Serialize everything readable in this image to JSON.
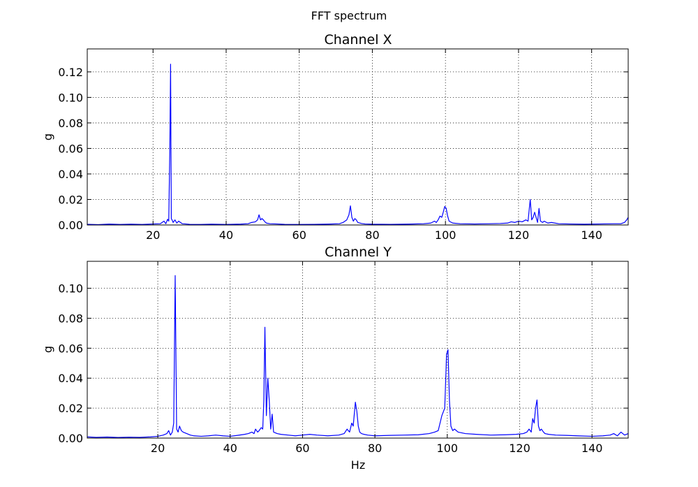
{
  "figure": {
    "suptitle": "FFT spectrum",
    "line_color": "#0000ff",
    "grid_color": "#000000",
    "axis_color": "#000000"
  },
  "chart_data": [
    {
      "type": "line",
      "title": "Channel X",
      "xlabel": "",
      "ylabel": "g",
      "xlim": [
        2,
        150
      ],
      "ylim": [
        0,
        0.138
      ],
      "xticks": [
        20,
        40,
        60,
        80,
        100,
        120,
        140
      ],
      "yticks": [
        0.0,
        0.02,
        0.04,
        0.06,
        0.08,
        0.1,
        0.12
      ],
      "xtick_labels": [
        "20",
        "40",
        "60",
        "80",
        "100",
        "120",
        "140"
      ],
      "ytick_labels": [
        "0.00",
        "0.02",
        "0.04",
        "0.06",
        "0.08",
        "0.10",
        "0.12"
      ],
      "grid": true,
      "series": [
        {
          "x": [
            2,
            5,
            8,
            11,
            14,
            17,
            20,
            22,
            23,
            23.5,
            24,
            24.3,
            24.6,
            24.8,
            25.0,
            25.2,
            25.5,
            26,
            26.5,
            27,
            27.5,
            28,
            29,
            30,
            33,
            36,
            40,
            44,
            46,
            47,
            48,
            48.6,
            49,
            49.4,
            49.8,
            50.2,
            50.6,
            51,
            52,
            54,
            56,
            60,
            64,
            68,
            71,
            72,
            73,
            73.6,
            74,
            74.4,
            74.8,
            75.2,
            75.6,
            76,
            77,
            78,
            80,
            85,
            90,
            94,
            96,
            97,
            97.5,
            98,
            98.5,
            99,
            99.4,
            99.8,
            100.2,
            100.6,
            101,
            102,
            104,
            108,
            112,
            115,
            117,
            118,
            119,
            120,
            121,
            122,
            122.6,
            123.2,
            123.6,
            124,
            124.4,
            124.8,
            125.2,
            125.6,
            126,
            126.6,
            127,
            128,
            129,
            131,
            134,
            138,
            142,
            146,
            148,
            149,
            149.6,
            150
          ],
          "y": [
            0.0005,
            0.0003,
            0.0007,
            0.0004,
            0.0006,
            0.0004,
            0.0008,
            0.001,
            0.003,
            0.001,
            0.0045,
            0.003,
            0.06,
            0.126,
            0.005,
            0.004,
            0.002,
            0.004,
            0.0015,
            0.003,
            0.002,
            0.001,
            0.0008,
            0.0005,
            0.0004,
            0.0006,
            0.0004,
            0.0007,
            0.001,
            0.002,
            0.0025,
            0.004,
            0.008,
            0.004,
            0.005,
            0.004,
            0.0025,
            0.0015,
            0.001,
            0.0008,
            0.0005,
            0.0004,
            0.0005,
            0.0007,
            0.001,
            0.002,
            0.004,
            0.008,
            0.015,
            0.006,
            0.003,
            0.005,
            0.004,
            0.002,
            0.0012,
            0.0008,
            0.0006,
            0.0005,
            0.0007,
            0.001,
            0.0015,
            0.003,
            0.002,
            0.004,
            0.007,
            0.006,
            0.01,
            0.0145,
            0.013,
            0.007,
            0.003,
            0.0015,
            0.001,
            0.0008,
            0.001,
            0.0012,
            0.0015,
            0.0025,
            0.002,
            0.003,
            0.0025,
            0.004,
            0.003,
            0.02,
            0.004,
            0.006,
            0.01,
            0.006,
            0.002,
            0.013,
            0.003,
            0.002,
            0.003,
            0.0015,
            0.002,
            0.001,
            0.0008,
            0.0006,
            0.0008,
            0.001,
            0.001,
            0.002,
            0.004,
            0.006
          ]
        }
      ]
    },
    {
      "type": "line",
      "title": "Channel Y",
      "xlabel": "Hz",
      "ylabel": "g",
      "xlim": [
        0.5,
        150
      ],
      "ylim": [
        0,
        0.118
      ],
      "xticks": [
        20,
        40,
        60,
        80,
        100,
        120,
        140
      ],
      "yticks": [
        0.0,
        0.02,
        0.04,
        0.06,
        0.08,
        0.1
      ],
      "xtick_labels": [
        "20",
        "40",
        "60",
        "80",
        "100",
        "120",
        "140"
      ],
      "ytick_labels": [
        "0.00",
        "0.02",
        "0.04",
        "0.06",
        "0.08",
        "0.10"
      ],
      "grid": true,
      "series": [
        {
          "x": [
            0.5,
            3,
            6,
            9,
            12,
            15,
            18,
            20,
            21.5,
            22.5,
            23,
            23.5,
            24,
            24.4,
            24.8,
            25.2,
            25.6,
            26,
            26.5,
            27,
            28,
            29,
            30,
            32,
            34,
            36,
            38,
            40,
            42,
            44,
            45,
            46,
            46.6,
            47,
            47.6,
            48,
            48.6,
            49,
            49.3,
            49.6,
            50.0,
            50.4,
            50.8,
            51.2,
            51.6,
            52,
            53,
            54,
            56,
            58,
            60,
            62,
            64,
            67,
            70,
            71.5,
            72.3,
            73,
            73.6,
            74,
            74.6,
            75.0,
            75.4,
            75.8,
            76.3,
            77,
            78,
            80,
            84,
            88,
            92,
            95,
            96.5,
            97.5,
            98.5,
            99.3,
            99.8,
            100.2,
            100.6,
            101.0,
            101.5,
            102,
            103,
            105,
            108,
            112,
            116,
            119,
            121,
            122,
            122.6,
            123.2,
            123.6,
            124,
            124.4,
            124.8,
            125.2,
            125.6,
            126,
            126.6,
            127,
            128,
            130,
            133,
            136,
            140,
            143,
            145,
            146,
            147,
            148,
            149,
            150
          ],
          "y": [
            0.0008,
            0.0005,
            0.0007,
            0.0004,
            0.0006,
            0.0005,
            0.0008,
            0.0012,
            0.002,
            0.003,
            0.005,
            0.002,
            0.004,
            0.01,
            0.1085,
            0.006,
            0.004,
            0.008,
            0.005,
            0.004,
            0.003,
            0.002,
            0.0015,
            0.0012,
            0.0015,
            0.002,
            0.0015,
            0.0012,
            0.0018,
            0.0025,
            0.003,
            0.004,
            0.003,
            0.006,
            0.004,
            0.005,
            0.007,
            0.006,
            0.025,
            0.074,
            0.015,
            0.04,
            0.025,
            0.006,
            0.016,
            0.004,
            0.003,
            0.0025,
            0.002,
            0.0015,
            0.002,
            0.0025,
            0.002,
            0.0015,
            0.002,
            0.003,
            0.006,
            0.004,
            0.01,
            0.008,
            0.024,
            0.018,
            0.008,
            0.004,
            0.003,
            0.0025,
            0.002,
            0.0015,
            0.0018,
            0.002,
            0.0022,
            0.003,
            0.004,
            0.005,
            0.015,
            0.02,
            0.056,
            0.059,
            0.025,
            0.008,
            0.005,
            0.006,
            0.004,
            0.003,
            0.0025,
            0.002,
            0.0022,
            0.0025,
            0.003,
            0.004,
            0.006,
            0.004,
            0.013,
            0.01,
            0.02,
            0.0255,
            0.008,
            0.005,
            0.006,
            0.004,
            0.003,
            0.0025,
            0.002,
            0.0018,
            0.0015,
            0.0012,
            0.0015,
            0.002,
            0.003,
            0.0015,
            0.004,
            0.002,
            0.003
          ]
        }
      ]
    }
  ]
}
